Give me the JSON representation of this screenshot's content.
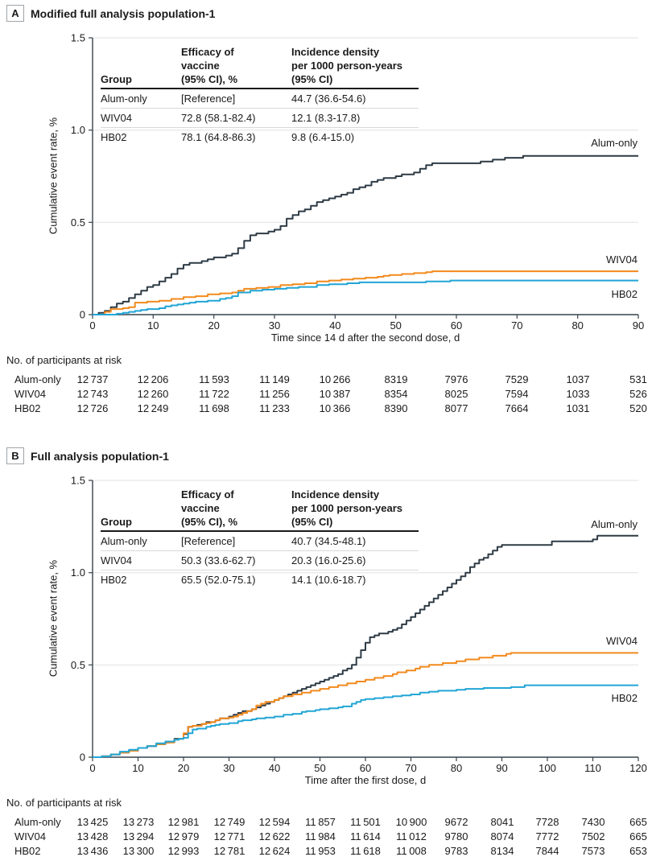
{
  "page": {
    "background": "#FFFFFF",
    "text_color": "#1A1A1A"
  },
  "chart_data": [
    {
      "type": "line",
      "panel_label": "A",
      "title": "Modified full analysis population-1",
      "xlabel": "Time since 14 d after the second dose, d",
      "ylabel": "Cumulative event rate, %",
      "xlim": [
        0,
        90
      ],
      "ylim": [
        0,
        1.5
      ],
      "xticks": [
        0,
        10,
        20,
        30,
        40,
        50,
        60,
        70,
        80,
        90
      ],
      "yticks": [
        0,
        0.5,
        1.0,
        1.5
      ],
      "ytick_labels": [
        "0",
        "0.5",
        "1.0",
        "1.5"
      ],
      "grid": "horizontal-light",
      "gridline_color": "#E2E2E2",
      "axis_color": "#37424A",
      "series": [
        {
          "name": "Alum-only",
          "color": "#2E3B45",
          "label_y": 0.93,
          "x": [
            0,
            1,
            2,
            3,
            4,
            5,
            6,
            7,
            8,
            9,
            10,
            11,
            12,
            13,
            14,
            15,
            16,
            17,
            18,
            19,
            20,
            21,
            22,
            23,
            24,
            25,
            26,
            27,
            28,
            29,
            30,
            31,
            32,
            33,
            34,
            35,
            36,
            37,
            38,
            39,
            40,
            41,
            42,
            43,
            44,
            45,
            46,
            47,
            48,
            49,
            50,
            51,
            52,
            53,
            54,
            55,
            56,
            58,
            60,
            62,
            64,
            65,
            66,
            67,
            68,
            69,
            70,
            71,
            75,
            80,
            85,
            90
          ],
          "y": [
            0,
            0.01,
            0.02,
            0.04,
            0.06,
            0.07,
            0.09,
            0.11,
            0.13,
            0.15,
            0.16,
            0.18,
            0.2,
            0.22,
            0.25,
            0.27,
            0.28,
            0.28,
            0.29,
            0.3,
            0.31,
            0.31,
            0.32,
            0.33,
            0.36,
            0.4,
            0.43,
            0.44,
            0.44,
            0.45,
            0.46,
            0.48,
            0.52,
            0.54,
            0.56,
            0.57,
            0.59,
            0.61,
            0.62,
            0.63,
            0.64,
            0.65,
            0.66,
            0.68,
            0.69,
            0.7,
            0.72,
            0.73,
            0.74,
            0.74,
            0.75,
            0.76,
            0.76,
            0.77,
            0.79,
            0.81,
            0.82,
            0.82,
            0.82,
            0.82,
            0.83,
            0.83,
            0.84,
            0.84,
            0.85,
            0.85,
            0.85,
            0.86,
            0.86,
            0.86,
            0.86,
            0.86
          ]
        },
        {
          "name": "WIV04",
          "color": "#F28A1D",
          "label_y": 0.297,
          "x": [
            0,
            1,
            2,
            3,
            5,
            6,
            7,
            9,
            11,
            13,
            15,
            17,
            19,
            21,
            23,
            24,
            25,
            27,
            29,
            31,
            33,
            35,
            37,
            39,
            41,
            43,
            45,
            47,
            48,
            49,
            51,
            53,
            55,
            56,
            60,
            70,
            80,
            90
          ],
          "y": [
            0,
            0,
            0.015,
            0.03,
            0.035,
            0.04,
            0.065,
            0.07,
            0.075,
            0.085,
            0.095,
            0.1,
            0.11,
            0.115,
            0.12,
            0.13,
            0.14,
            0.145,
            0.15,
            0.16,
            0.165,
            0.17,
            0.18,
            0.185,
            0.19,
            0.195,
            0.2,
            0.205,
            0.21,
            0.215,
            0.22,
            0.225,
            0.23,
            0.235,
            0.235,
            0.235,
            0.235,
            0.235
          ]
        },
        {
          "name": "HB02",
          "color": "#21A5D6",
          "label_y": 0.109,
          "x": [
            0,
            2,
            4,
            5,
            6,
            7,
            8,
            9,
            11,
            12,
            13,
            14,
            15,
            16,
            17,
            19,
            21,
            22,
            23,
            24,
            26,
            28,
            30,
            32,
            34,
            37,
            39,
            42,
            44,
            48,
            52,
            55,
            58,
            59,
            65,
            75,
            90
          ],
          "y": [
            0,
            0,
            0.005,
            0.01,
            0.015,
            0.02,
            0.025,
            0.03,
            0.035,
            0.045,
            0.05,
            0.055,
            0.06,
            0.065,
            0.07,
            0.075,
            0.085,
            0.09,
            0.1,
            0.12,
            0.13,
            0.135,
            0.14,
            0.145,
            0.15,
            0.16,
            0.165,
            0.17,
            0.175,
            0.175,
            0.175,
            0.18,
            0.18,
            0.185,
            0.185,
            0.185,
            0.185
          ]
        }
      ],
      "inset_table": {
        "header_group": "Group",
        "header_efficacy": "Efficacy of\nvaccine\n(95% CI), %",
        "header_incidence": "Incidence density\nper 1000 person-years\n(95% CI)",
        "rows": [
          [
            "Alum-only",
            "[Reference]",
            "44.7 (36.6-54.6)"
          ],
          [
            "WIV04",
            "72.8 (58.1-82.4)",
            "12.1 (8.3-17.8)"
          ],
          [
            "HB02",
            "78.1 (64.8-86.3)",
            "9.8 (6.4-15.0)"
          ]
        ]
      },
      "at_risk": {
        "title": "No. of participants at risk",
        "rows": [
          {
            "label": "Alum-only",
            "values": [
              "12 737",
              "12 206",
              "11 593",
              "11 149",
              "10 266",
              "8319",
              "7976",
              "7529",
              "1037",
              "531"
            ]
          },
          {
            "label": "WIV04",
            "values": [
              "12 743",
              "12 260",
              "11 722",
              "11 256",
              "10 387",
              "8354",
              "8025",
              "7594",
              "1033",
              "526"
            ]
          },
          {
            "label": "HB02",
            "values": [
              "12 726",
              "12 249",
              "11 698",
              "11 233",
              "10 366",
              "8390",
              "8077",
              "7664",
              "1031",
              "520"
            ]
          }
        ]
      }
    },
    {
      "type": "line",
      "panel_label": "B",
      "title": "Full analysis population-1",
      "xlabel": "Time after the first dose, d",
      "ylabel": "Cumulative event rate, %",
      "xlim": [
        0,
        120
      ],
      "ylim": [
        0,
        1.5
      ],
      "xticks": [
        0,
        10,
        20,
        30,
        40,
        50,
        60,
        70,
        80,
        90,
        100,
        110,
        120
      ],
      "yticks": [
        0,
        0.5,
        1.0,
        1.5
      ],
      "ytick_labels": [
        "0",
        "0.5",
        "1.0",
        "1.5"
      ],
      "grid": "horizontal-light",
      "gridline_color": "#E2E2E2",
      "axis_color": "#37424A",
      "series": [
        {
          "name": "Alum-only",
          "color": "#2E3B45",
          "label_y": 1.262,
          "x": [
            0,
            2,
            4,
            6,
            8,
            10,
            12,
            14,
            16,
            17,
            18,
            20,
            21,
            22,
            23,
            24,
            25,
            27,
            28,
            30,
            31,
            32,
            33,
            35,
            36,
            37,
            38,
            39,
            40,
            41,
            42,
            43,
            44,
            45,
            46,
            47,
            48,
            49,
            50,
            51,
            52,
            53,
            54,
            55,
            56,
            57,
            58,
            59,
            60,
            61,
            62,
            63,
            64,
            65,
            66,
            67,
            68,
            69,
            70,
            71,
            72,
            73,
            74,
            75,
            76,
            77,
            78,
            79,
            80,
            81,
            82,
            83,
            84,
            85,
            86,
            87,
            88,
            89,
            90,
            95,
            100,
            101,
            105,
            110,
            111,
            115,
            120
          ],
          "y": [
            0,
            0.005,
            0.015,
            0.025,
            0.035,
            0.05,
            0.06,
            0.07,
            0.08,
            0.085,
            0.1,
            0.125,
            0.165,
            0.17,
            0.175,
            0.18,
            0.19,
            0.2,
            0.21,
            0.22,
            0.23,
            0.24,
            0.25,
            0.26,
            0.27,
            0.28,
            0.29,
            0.3,
            0.31,
            0.32,
            0.33,
            0.34,
            0.35,
            0.36,
            0.37,
            0.38,
            0.39,
            0.4,
            0.41,
            0.42,
            0.43,
            0.44,
            0.45,
            0.47,
            0.48,
            0.5,
            0.54,
            0.58,
            0.62,
            0.65,
            0.66,
            0.67,
            0.67,
            0.68,
            0.69,
            0.7,
            0.72,
            0.74,
            0.76,
            0.78,
            0.8,
            0.82,
            0.84,
            0.86,
            0.88,
            0.9,
            0.92,
            0.94,
            0.96,
            0.98,
            1.0,
            1.03,
            1.05,
            1.07,
            1.08,
            1.1,
            1.12,
            1.14,
            1.15,
            1.15,
            1.15,
            1.17,
            1.17,
            1.18,
            1.2,
            1.2,
            1.2
          ]
        },
        {
          "name": "WIV04",
          "color": "#F28A1D",
          "label_y": 0.629,
          "x": [
            0,
            2,
            4,
            6,
            8,
            10,
            12,
            14,
            16,
            18,
            19,
            20,
            21,
            22,
            24,
            25,
            26,
            27,
            28,
            30,
            31,
            32,
            33,
            34,
            35,
            36,
            37,
            38,
            40,
            41,
            42,
            44,
            46,
            48,
            50,
            52,
            54,
            56,
            58,
            60,
            62,
            64,
            66,
            67,
            69,
            71,
            72,
            74,
            77,
            80,
            82,
            85,
            88,
            90,
            91,
            92,
            95,
            100,
            110,
            120
          ],
          "y": [
            0,
            0.005,
            0.015,
            0.025,
            0.035,
            0.05,
            0.06,
            0.07,
            0.08,
            0.095,
            0.1,
            0.13,
            0.165,
            0.17,
            0.18,
            0.185,
            0.19,
            0.2,
            0.21,
            0.215,
            0.22,
            0.23,
            0.24,
            0.25,
            0.26,
            0.28,
            0.29,
            0.3,
            0.31,
            0.32,
            0.33,
            0.34,
            0.35,
            0.36,
            0.37,
            0.38,
            0.39,
            0.4,
            0.41,
            0.42,
            0.43,
            0.44,
            0.45,
            0.46,
            0.47,
            0.48,
            0.49,
            0.5,
            0.51,
            0.52,
            0.53,
            0.54,
            0.55,
            0.55,
            0.56,
            0.565,
            0.565,
            0.565,
            0.565,
            0.565
          ]
        },
        {
          "name": "HB02",
          "color": "#21A5D6",
          "label_y": 0.319,
          "x": [
            0,
            2,
            4,
            6,
            8,
            10,
            12,
            14,
            16,
            18,
            19,
            20,
            21,
            22,
            23,
            25,
            26,
            27,
            28,
            30,
            32,
            33,
            35,
            36,
            38,
            40,
            42,
            44,
            46,
            47,
            49,
            50,
            52,
            54,
            55,
            57,
            58,
            59,
            60,
            62,
            64,
            66,
            68,
            70,
            72,
            74,
            76,
            80,
            82,
            86,
            90,
            92,
            95,
            100,
            110,
            120
          ],
          "y": [
            0,
            0.005,
            0.015,
            0.03,
            0.04,
            0.05,
            0.06,
            0.075,
            0.085,
            0.095,
            0.1,
            0.105,
            0.13,
            0.15,
            0.155,
            0.165,
            0.17,
            0.175,
            0.18,
            0.185,
            0.195,
            0.2,
            0.205,
            0.21,
            0.215,
            0.22,
            0.23,
            0.235,
            0.245,
            0.25,
            0.255,
            0.26,
            0.265,
            0.27,
            0.275,
            0.29,
            0.3,
            0.31,
            0.315,
            0.32,
            0.325,
            0.33,
            0.335,
            0.34,
            0.35,
            0.355,
            0.36,
            0.365,
            0.37,
            0.375,
            0.375,
            0.38,
            0.39,
            0.39,
            0.39,
            0.39
          ]
        }
      ],
      "inset_table": {
        "header_group": "Group",
        "header_efficacy": "Efficacy of\nvaccine\n(95% CI), %",
        "header_incidence": "Incidence density\nper 1000 person-years\n(95% CI)",
        "rows": [
          [
            "Alum-only",
            "[Reference]",
            "40.7 (34.5-48.1)"
          ],
          [
            "WIV04",
            "50.3 (33.6-62.7)",
            "20.3 (16.0-25.6)"
          ],
          [
            "HB02",
            "65.5 (52.0-75.1)",
            "14.1 (10.6-18.7)"
          ]
        ]
      },
      "at_risk": {
        "title": "No. of participants at risk",
        "rows": [
          {
            "label": "Alum-only",
            "values": [
              "13 425",
              "13 273",
              "12 981",
              "12 749",
              "12 594",
              "11 857",
              "11 501",
              "10 900",
              "9672",
              "8041",
              "7728",
              "7430",
              "665"
            ]
          },
          {
            "label": "WIV04",
            "values": [
              "13 428",
              "13 294",
              "12 979",
              "12 771",
              "12 622",
              "11 984",
              "11 614",
              "11 012",
              "9780",
              "8074",
              "7772",
              "7502",
              "665"
            ]
          },
          {
            "label": "HB02",
            "values": [
              "13 436",
              "13 300",
              "12 993",
              "12 781",
              "12 624",
              "11 953",
              "11 618",
              "11 008",
              "9783",
              "8134",
              "7844",
              "7573",
              "653"
            ]
          }
        ]
      }
    }
  ]
}
